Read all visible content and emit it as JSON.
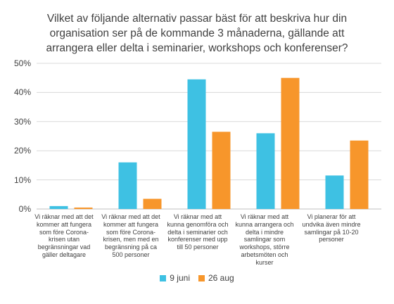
{
  "chart_data": {
    "type": "bar",
    "title_lines": [
      "Vilket av följande alternativ passar bäst för att beskriva hur din",
      "organisation ser på de kommande 3 månaderna, gällande att",
      "arrangera eller delta i seminarier, workshops och konferenser?"
    ],
    "categories": [
      [
        "Vi räknar med att det",
        "kommer att fungera",
        "som före Corona-",
        "krisen utan",
        "begränsningar vad",
        "gäller deltagare"
      ],
      [
        "Vi räknar med att det",
        "kommer att fungera",
        "som före Corona-",
        "krisen, men med en",
        "begränsning på ca",
        "500 personer"
      ],
      [
        "Vi räknar med att",
        "kunna genomföra och",
        "delta i seminarier och",
        "konferenser med upp",
        "till 50 personer"
      ],
      [
        "Vi räknar med att",
        "kunna arrangera och",
        "delta i mindre",
        "samlingar som",
        "workshops, större",
        "arbetsmöten och",
        "kurser"
      ],
      [
        "Vi planerar för att",
        "undvika även mindre",
        "samlingar på 10-20",
        "personer"
      ]
    ],
    "series": [
      {
        "name": "9 juni",
        "color": "#3EC1E3",
        "values": [
          1,
          16,
          44.5,
          26,
          11.5
        ]
      },
      {
        "name": "26 aug",
        "color": "#F7962B",
        "values": [
          0.5,
          3.5,
          26.5,
          45,
          23.5
        ]
      }
    ],
    "yticks": [
      "0%",
      "10%",
      "20%",
      "30%",
      "40%",
      "50%"
    ],
    "ylim": [
      0,
      50
    ],
    "grid": true,
    "legend_position": "bottom"
  }
}
